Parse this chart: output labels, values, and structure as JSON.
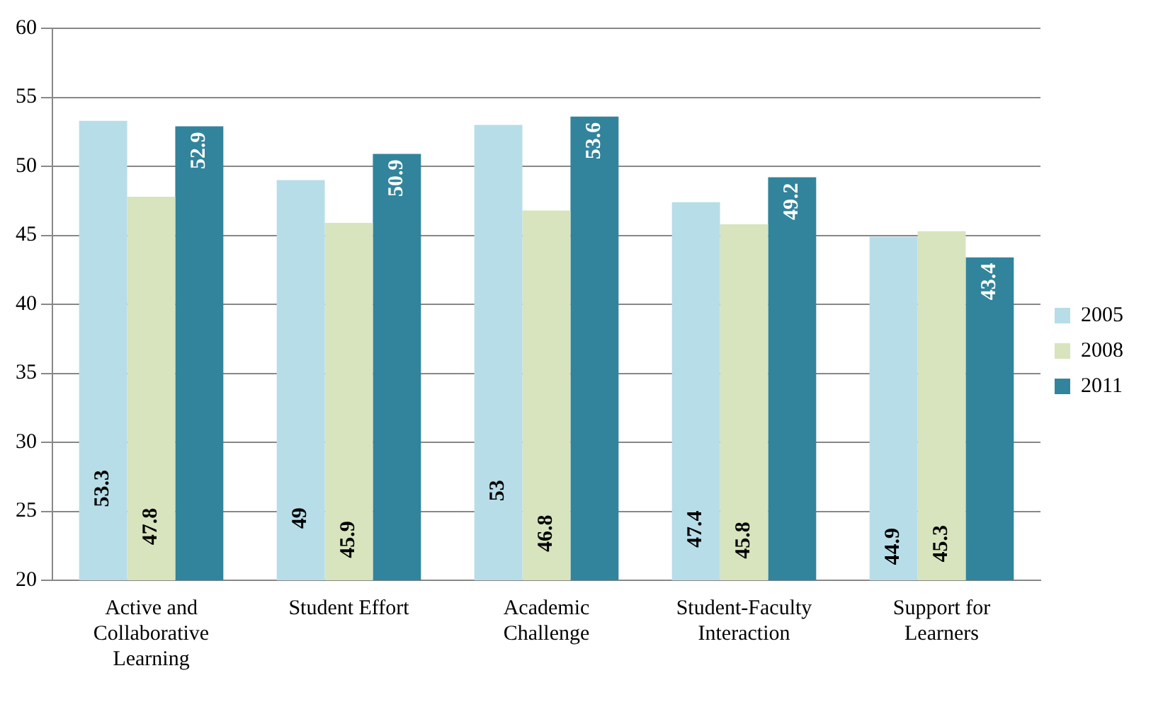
{
  "chart_data": {
    "type": "bar",
    "categories": [
      "Active and Collaborative Learning",
      "Student Effort",
      "Academic Challenge",
      "Student-Faculty Interaction",
      "Support for Learners"
    ],
    "series": [
      {
        "name": "2005",
        "color": "#b7dde8",
        "values": [
          53.3,
          49,
          53,
          47.4,
          44.9
        ]
      },
      {
        "name": "2008",
        "color": "#d7e4bd",
        "values": [
          47.8,
          45.9,
          46.8,
          45.8,
          45.3
        ]
      },
      {
        "name": "2011",
        "color": "#31849b",
        "values": [
          52.9,
          50.9,
          53.6,
          49.2,
          43.4
        ]
      }
    ],
    "ylim": [
      20,
      60
    ],
    "yticks": [
      20,
      25,
      30,
      35,
      40,
      45,
      50,
      55,
      60
    ],
    "grid": "y",
    "legend": "right",
    "data_labels": true
  }
}
